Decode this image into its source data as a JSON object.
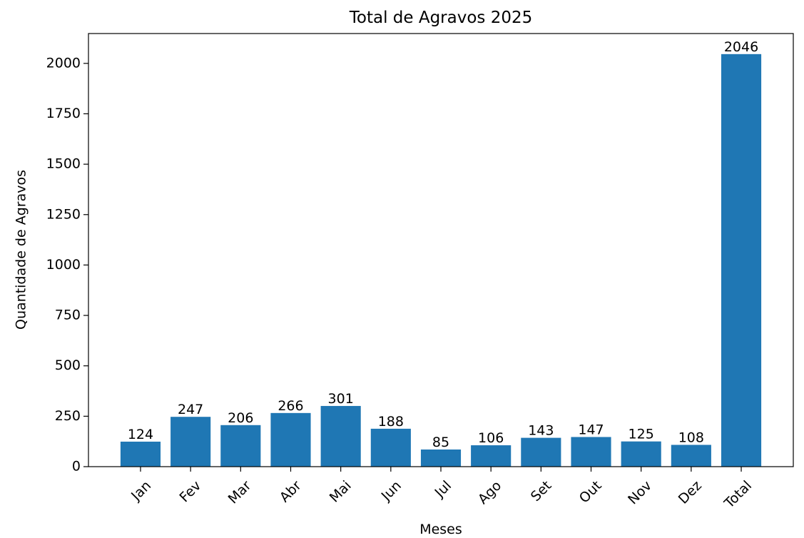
{
  "chart_data": {
    "type": "bar",
    "title": "Total de Agravos 2025",
    "x_label": "Meses",
    "y_label": "Quantidade de Agravos",
    "categories": [
      "Jan",
      "Fev",
      "Mar",
      "Abr",
      "Mai",
      "Jun",
      "Jul",
      "Ago",
      "Set",
      "Out",
      "Nov",
      "Dez",
      "Total"
    ],
    "values": [
      124,
      247,
      206,
      266,
      301,
      188,
      85,
      106,
      143,
      147,
      125,
      108,
      2046
    ],
    "color": "#1f77b4",
    "ylim": [
      0,
      2148
    ],
    "yticks": [
      0,
      250,
      500,
      750,
      1000,
      1250,
      1500,
      1750,
      2000
    ],
    "grid": false
  }
}
